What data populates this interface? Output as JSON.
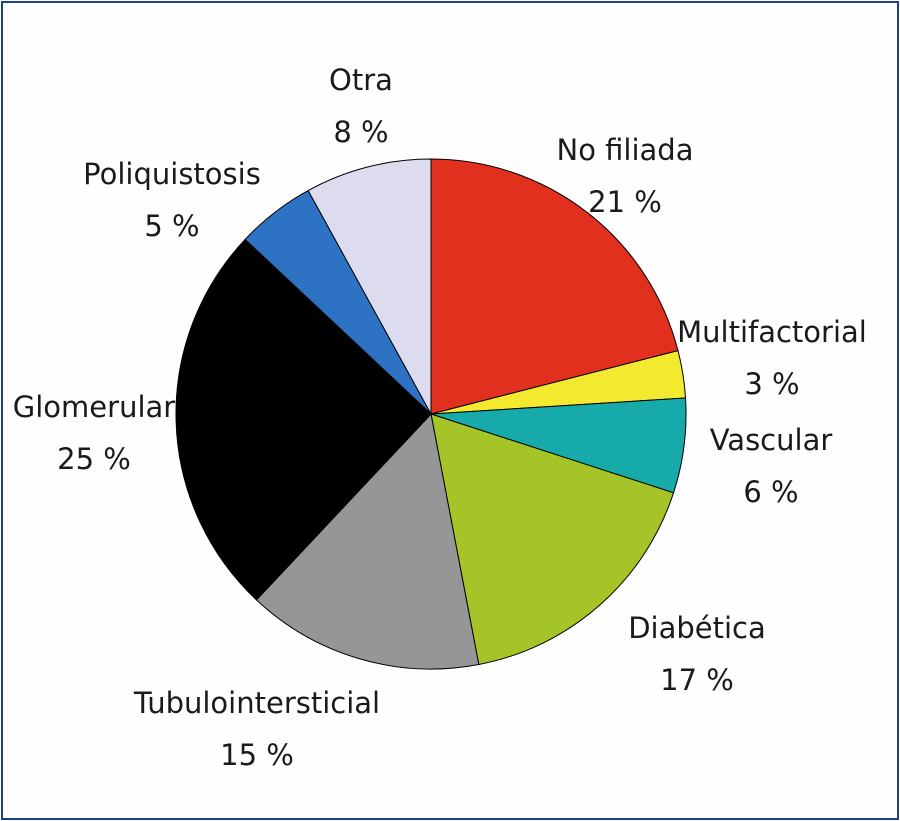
{
  "chart_data": {
    "type": "pie",
    "slices": [
      {
        "label": "No filiada",
        "value": 21,
        "value_label": "21 %",
        "color": "#e2301f"
      },
      {
        "label": "Multifactorial",
        "value": 3,
        "value_label": "3 %",
        "color": "#f3e92e"
      },
      {
        "label": "Vascular",
        "value": 6,
        "value_label": "6 %",
        "color": "#16aaaa"
      },
      {
        "label": "Diabética",
        "value": 17,
        "value_label": "17 %",
        "color": "#a5c428"
      },
      {
        "label": "Tubulointersticial",
        "value": 15,
        "value_label": "15 %",
        "color": "#969696"
      },
      {
        "label": "Glomerular",
        "value": 25,
        "value_label": "25 %",
        "color": "#000000"
      },
      {
        "label": "Poliquistosis",
        "value": 5,
        "value_label": "5 %",
        "color": "#2e72c4"
      },
      {
        "label": "Otra",
        "value": 8,
        "value_label": "8 %",
        "color": "#dcdcee"
      }
    ],
    "start_angle_deg": 0,
    "direction": "clockwise"
  }
}
